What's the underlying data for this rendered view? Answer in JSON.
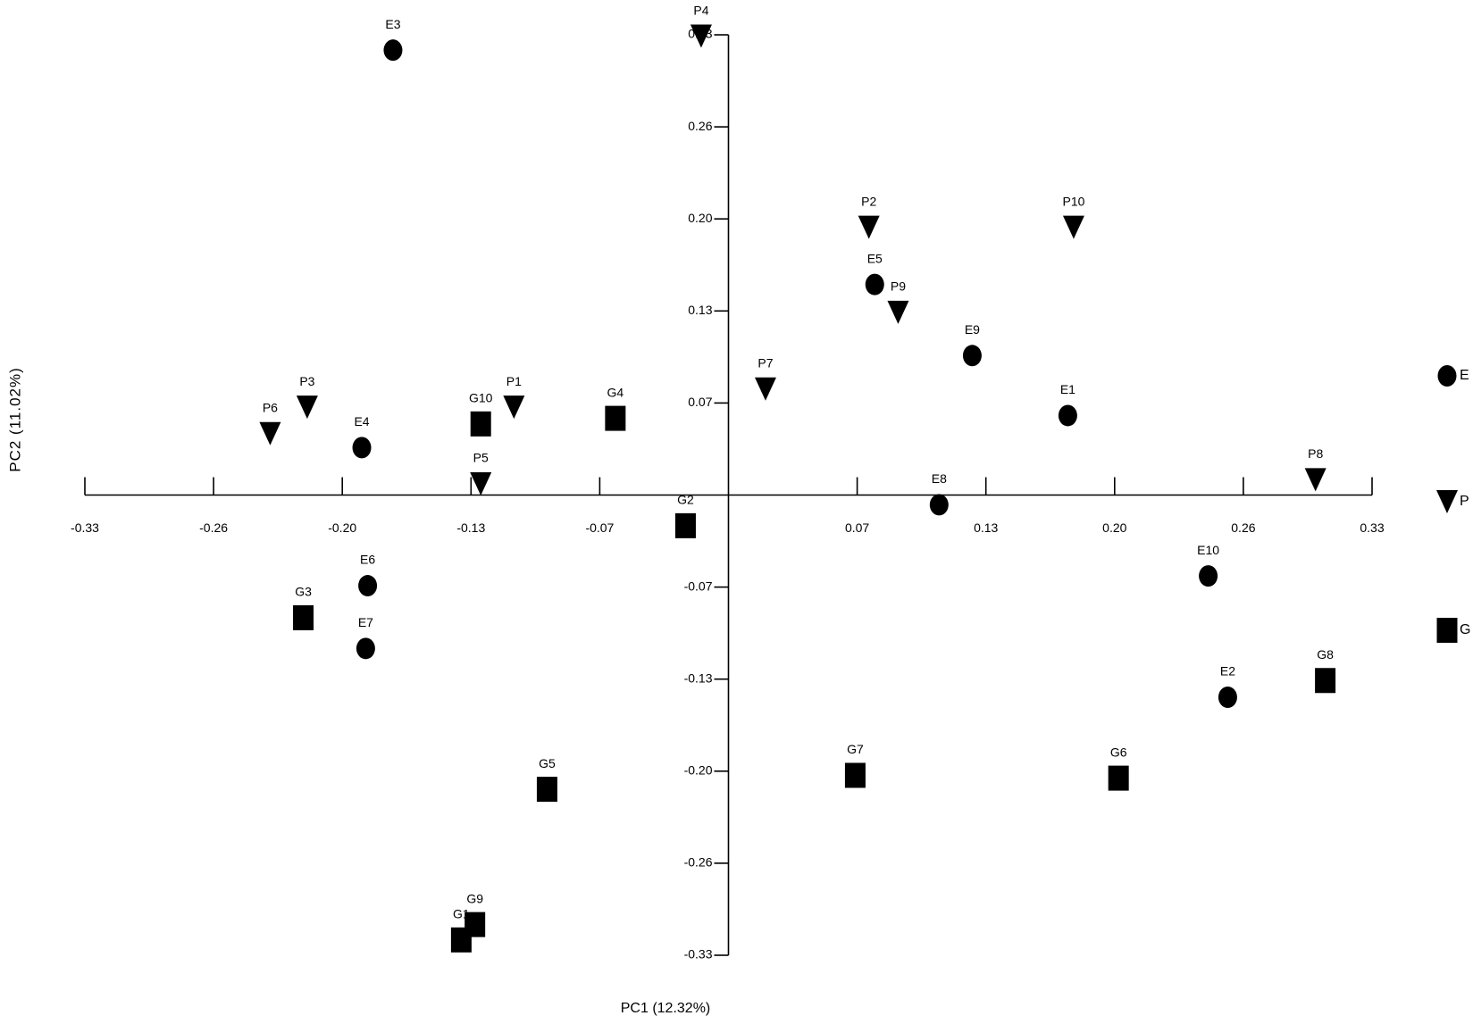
{
  "chart_data": {
    "type": "scatter",
    "xlabel": "PC1 (12.32%)",
    "ylabel": "PC2 (11.02%)",
    "xlim": [
      -0.33,
      0.33
    ],
    "ylim": [
      -0.33,
      0.33
    ],
    "xticks": [
      -0.33,
      {
        "value": -0.264,
        "label": "-0.26"
      },
      {
        "value": -0.198,
        "label": "-0.20"
      },
      {
        "value": -0.132,
        "label": "-0.13"
      },
      {
        "value": -0.066,
        "label": "-0.07"
      },
      {
        "value": 0.066,
        "label": "0.07"
      },
      {
        "value": 0.132,
        "label": "0.13"
      },
      {
        "value": 0.198,
        "label": "0.20"
      },
      {
        "value": 0.264,
        "label": "0.26"
      },
      0.33
    ],
    "yticks": [
      -0.33,
      {
        "value": -0.264,
        "label": "-0.26"
      },
      {
        "value": -0.198,
        "label": "-0.20"
      },
      {
        "value": -0.132,
        "label": "-0.13"
      },
      {
        "value": -0.066,
        "label": "-0.07"
      },
      {
        "value": 0.066,
        "label": "0.07"
      },
      {
        "value": 0.132,
        "label": "0.13"
      },
      {
        "value": 0.198,
        "label": "0.20"
      },
      {
        "value": 0.264,
        "label": "0.26"
      },
      0.33
    ],
    "legend": "right",
    "series": [
      {
        "name": "E",
        "marker": "circle",
        "color": "#000000",
        "labels": [
          "E1",
          "E2",
          "E3",
          "E4",
          "E5",
          "E6",
          "E7",
          "E8",
          "E9",
          "E10"
        ],
        "x": [
          0.174,
          0.256,
          -0.172,
          -0.188,
          0.075,
          -0.185,
          -0.186,
          0.108,
          0.125,
          0.246
        ],
        "values": [
          0.057,
          -0.145,
          0.319,
          0.034,
          0.151,
          -0.065,
          -0.11,
          -0.007,
          0.1,
          -0.058
        ]
      },
      {
        "name": "P",
        "marker": "triangle-down",
        "color": "#000000",
        "labels": [
          "P1",
          "P2",
          "P3",
          "P4",
          "P5",
          "P6",
          "P7",
          "P8",
          "P9",
          "P10"
        ],
        "x": [
          -0.11,
          0.072,
          -0.216,
          -0.014,
          -0.127,
          -0.235,
          0.019,
          0.301,
          0.087,
          0.177
        ],
        "values": [
          0.063,
          0.192,
          0.063,
          0.329,
          0.008,
          0.044,
          0.076,
          0.011,
          0.131,
          0.192
        ]
      },
      {
        "name": "G",
        "marker": "square",
        "color": "#000000",
        "labels": [
          "G1",
          "G2",
          "G3",
          "G4",
          "G5",
          "G6",
          "G7",
          "G8",
          "G9",
          "G10"
        ],
        "x": [
          -0.137,
          -0.022,
          -0.218,
          -0.058,
          -0.093,
          0.2,
          0.065,
          0.306,
          -0.13,
          -0.127
        ],
        "values": [
          -0.319,
          -0.022,
          -0.088,
          0.055,
          -0.211,
          -0.203,
          -0.201,
          -0.133,
          -0.308,
          0.051
        ]
      }
    ]
  }
}
